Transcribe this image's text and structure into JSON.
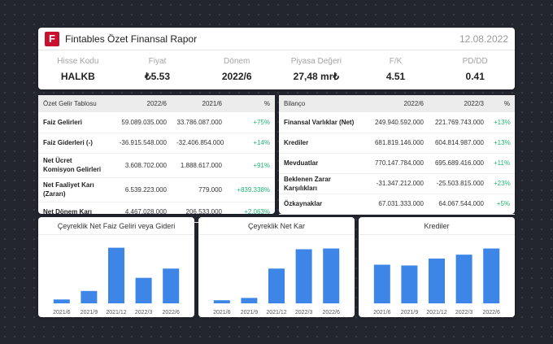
{
  "header": {
    "logo_letter": "F",
    "title": "Fintables Özet Finansal Rapor",
    "date": "12.08.2022",
    "metrics": [
      {
        "label": "Hisse Kodu",
        "value": "HALKB"
      },
      {
        "label": "Fiyat",
        "value": "₺5.53"
      },
      {
        "label": "Dönem",
        "value": "2022/6"
      },
      {
        "label": "Piyasa Değeri",
        "value": "27,48 mr₺"
      },
      {
        "label": "F/K",
        "value": "4.51"
      },
      {
        "label": "PD/DD",
        "value": "0.41"
      }
    ]
  },
  "income": {
    "headers": [
      "Özet Gelir Tablosu",
      "2022/6",
      "2021/6",
      "%"
    ],
    "rows": [
      {
        "label": "Faiz Gelirleri",
        "a": "59.089.035.000",
        "b": "33.786.087.000",
        "pct": "+75%"
      },
      {
        "label": "Faiz Giderleri (-)",
        "a": "-36.915.548.000",
        "b": "-32.406.854.000",
        "pct": "+14%"
      },
      {
        "label": "Net Ücret Komisyon Gelirleri",
        "a": "3.608.702.000",
        "b": "1.888.617.000",
        "pct": "+91%"
      },
      {
        "label": "Net Faaliyet Karı (Zararı)",
        "a": "6.539.223.000",
        "b": "779.000",
        "pct": "+839.338%"
      },
      {
        "label": "Net Dönem Karı",
        "a": "4.467.028.000",
        "b": "206.533.000",
        "pct": "+2.063%"
      }
    ]
  },
  "balance": {
    "headers": [
      "Bilanço",
      "2022/6",
      "2022/3",
      "%"
    ],
    "rows": [
      {
        "label": "Finansal Varlıklar (Net)",
        "a": "249.940.592.000",
        "b": "221.769.743.000",
        "pct": "+13%"
      },
      {
        "label": "Krediler",
        "a": "681.819.146.000",
        "b": "604.814.987.000",
        "pct": "+13%"
      },
      {
        "label": "Mevduatlar",
        "a": "770.147.784.000",
        "b": "695.689.416.000",
        "pct": "+11%"
      },
      {
        "label": "Beklenen Zarar Karşılıkları",
        "a": "-31.347.212.000",
        "b": "-25.503.815.000",
        "pct": "+23%"
      },
      {
        "label": "Özkaynaklar",
        "a": "67.031.333.000",
        "b": "64.067.544.000",
        "pct": "+5%"
      }
    ]
  },
  "colors": {
    "bar": "#3d86e8",
    "positive": "#22b573",
    "brand": "#c8102e"
  },
  "chart_data": [
    {
      "type": "bar",
      "title": "Çeyreklik Net Faiz Geliri veya Gideri",
      "categories": [
        "2021/6",
        "2021/9",
        "2021/12",
        "2022/3",
        "2022/6"
      ],
      "values": [
        5,
        16,
        72,
        33,
        45
      ],
      "ylim": [
        0,
        80
      ],
      "grid": false
    },
    {
      "type": "bar",
      "title": "Çeyreklik Net Kar",
      "categories": [
        "2021/6",
        "2021/9",
        "2021/12",
        "2022/3",
        "2022/6"
      ],
      "values": [
        4,
        7,
        45,
        70,
        71
      ],
      "ylim": [
        0,
        80
      ],
      "grid": false
    },
    {
      "type": "bar",
      "title": "Krediler",
      "categories": [
        "2021/6",
        "2021/9",
        "2021/12",
        "2022/3",
        "2022/6"
      ],
      "values": [
        50,
        49,
        58,
        63,
        71
      ],
      "ylim": [
        0,
        80
      ],
      "grid": false
    }
  ]
}
